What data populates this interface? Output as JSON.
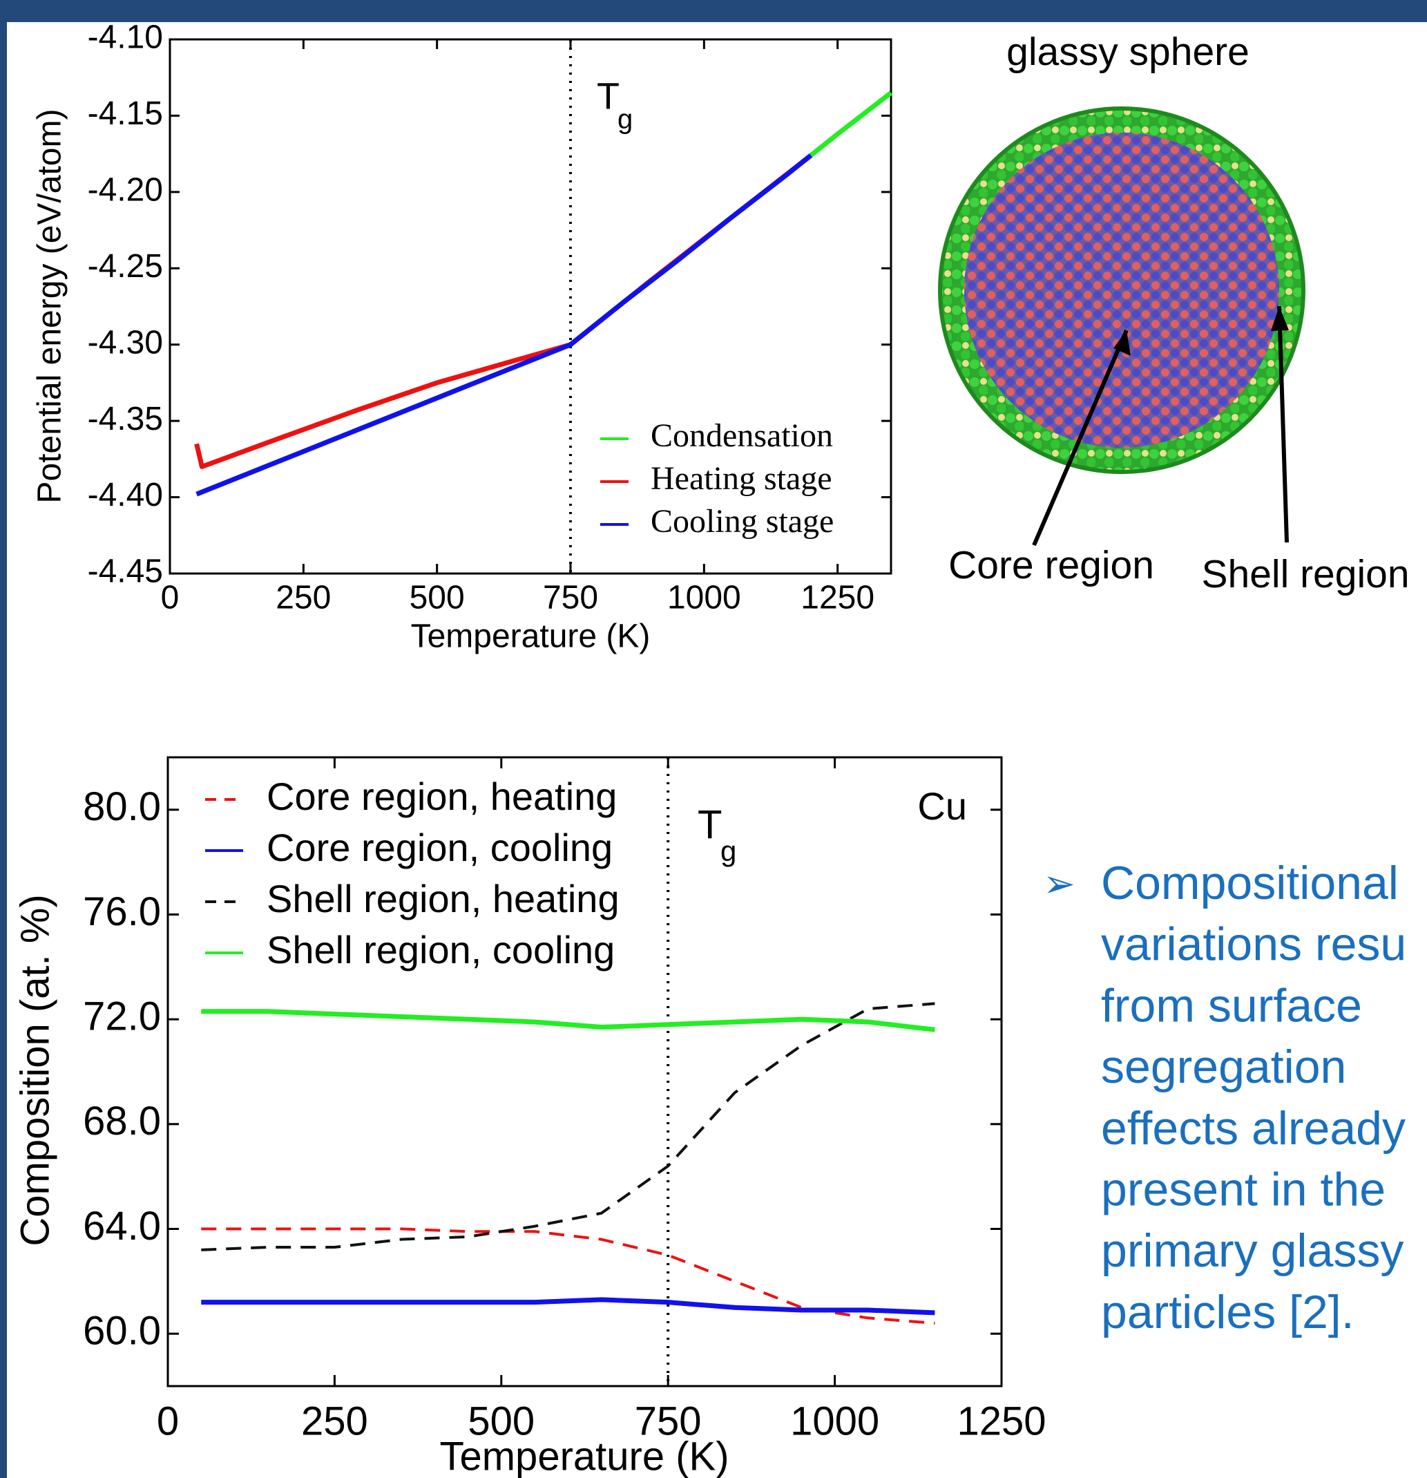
{
  "chart_data": [
    {
      "type": "line",
      "xlabel": "Temperature (K)",
      "ylabel": "Potential energy (eV/atom)",
      "xlim": [
        0,
        1350
      ],
      "xticks": [
        0,
        250,
        500,
        750,
        1000,
        1250
      ],
      "ylim": [
        -4.45,
        -4.1
      ],
      "yticks": [
        -4.45,
        {
          "value": -4.4,
          "label": "-4.40"
        },
        -4.35,
        {
          "value": -4.3,
          "label": "-4.30"
        },
        -4.25,
        {
          "value": -4.2,
          "label": "-4.20"
        },
        -4.15,
        {
          "value": -4.1,
          "label": "-4.10"
        }
      ],
      "vline": {
        "x": 750,
        "label": "T",
        "label_sub": "g"
      },
      "legend": "lower right",
      "series": [
        {
          "name": "Condensation",
          "color": "#22ee22",
          "x": [
            50,
            150,
            250,
            350,
            450,
            550,
            650,
            750,
            850,
            950,
            1050,
            1150,
            1250,
            1350
          ],
          "values": [
            -4.398,
            -4.384,
            -4.37,
            -4.356,
            -4.342,
            -4.328,
            -4.314,
            -4.3,
            -4.272,
            -4.245,
            -4.217,
            -4.19,
            -4.162,
            -4.135
          ]
        },
        {
          "name": "Heating stage",
          "color": "#ee1111",
          "x": [
            50,
            60,
            200,
            350,
            500,
            650,
            750,
            900,
            1050,
            1200
          ],
          "values": [
            -4.365,
            -4.38,
            -4.362,
            -4.343,
            -4.325,
            -4.31,
            -4.3,
            -4.258,
            -4.217,
            -4.176
          ]
        },
        {
          "name": "Cooling stage",
          "color": "#1111ee",
          "x": [
            50,
            150,
            250,
            350,
            450,
            550,
            650,
            750,
            850,
            950,
            1050,
            1150,
            1200
          ],
          "values": [
            -4.398,
            -4.384,
            -4.37,
            -4.356,
            -4.342,
            -4.328,
            -4.314,
            -4.3,
            -4.272,
            -4.245,
            -4.217,
            -4.19,
            -4.176
          ]
        }
      ]
    },
    {
      "type": "line",
      "xlabel": "Temperature (K)",
      "ylabel": "Composition (at. %)",
      "xlim": [
        0,
        1250
      ],
      "xticks": [
        0,
        250,
        500,
        750,
        1000,
        1250
      ],
      "ylim": [
        58,
        82
      ],
      "yticks": [
        {
          "value": 60,
          "label": "60.0"
        },
        {
          "value": 64,
          "label": "64.0"
        },
        {
          "value": 68,
          "label": "68.0"
        },
        {
          "value": 72,
          "label": "72.0"
        },
        {
          "value": 76,
          "label": "76.0"
        },
        {
          "value": 80,
          "label": "80.0"
        }
      ],
      "vline": {
        "x": 750,
        "label": "T",
        "label_sub": "g"
      },
      "annotation": "Cu",
      "legend": "upper left",
      "x": [
        50,
        150,
        250,
        350,
        450,
        550,
        650,
        750,
        850,
        950,
        1050,
        1150
      ],
      "series": [
        {
          "name": "Core region, heating",
          "color": "#ee1111",
          "dashed": true,
          "values": [
            64.0,
            64.0,
            64.0,
            64.0,
            63.9,
            63.9,
            63.6,
            63.0,
            62.0,
            61.0,
            60.6,
            60.4
          ]
        },
        {
          "name": "Core region, cooling",
          "color": "#1111ee",
          "dashed": false,
          "values": [
            61.2,
            61.2,
            61.2,
            61.2,
            61.2,
            61.2,
            61.3,
            61.2,
            61.0,
            60.9,
            60.9,
            60.8
          ]
        },
        {
          "name": "Shell region, heating",
          "color": "#111111",
          "dashed": true,
          "values": [
            63.2,
            63.3,
            63.3,
            63.6,
            63.7,
            64.1,
            64.6,
            66.4,
            69.2,
            71.0,
            72.4,
            72.6
          ]
        },
        {
          "name": "Shell region, cooling",
          "color": "#22ee22",
          "dashed": false,
          "values": [
            72.3,
            72.3,
            72.2,
            72.1,
            72.0,
            71.9,
            71.7,
            71.8,
            71.9,
            72.0,
            71.9,
            71.6
          ]
        }
      ]
    }
  ],
  "sphere": {
    "title": "glassy sphere",
    "core_label": "Core region",
    "shell_label": "Shell region"
  },
  "bullet": {
    "lines": [
      "Compositional",
      "variations resu",
      "from surface",
      "segregation",
      "effects already",
      "present in the",
      "primary glassy",
      "particles [2]."
    ]
  }
}
